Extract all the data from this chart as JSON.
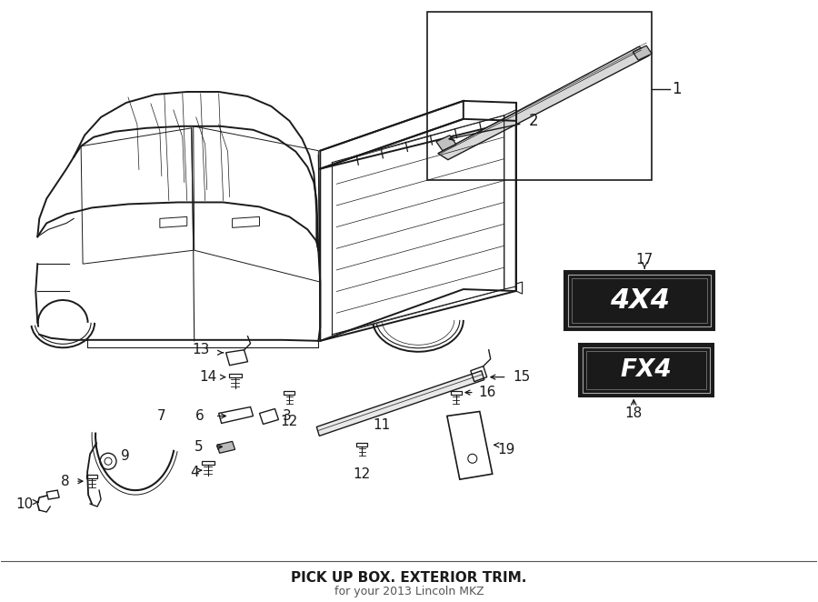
{
  "bg_color": "#ffffff",
  "line_color": "#1a1a1a",
  "title": "PICK UP BOX. EXTERIOR TRIM.",
  "subtitle": "for your 2013 Lincoln MKZ",
  "fig_width": 9.0,
  "fig_height": 6.62,
  "dpi": 100
}
